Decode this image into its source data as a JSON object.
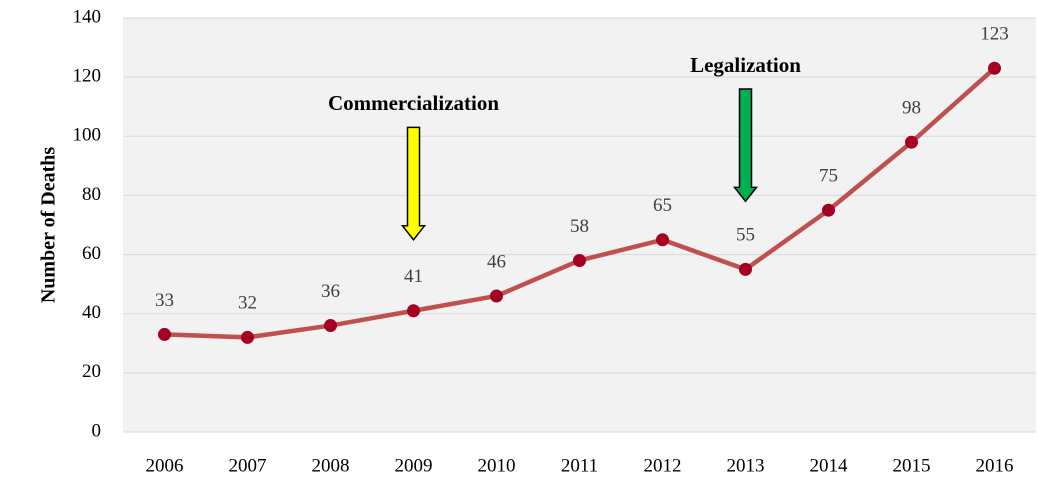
{
  "chart_data": {
    "type": "line",
    "title": "",
    "xlabel": "",
    "ylabel": "Number of Deaths",
    "categories": [
      "2006",
      "2007",
      "2008",
      "2009",
      "2010",
      "2011",
      "2012",
      "2013",
      "2014",
      "2015",
      "2016"
    ],
    "series": [
      {
        "values": [
          33,
          32,
          36,
          41,
          46,
          58,
          65,
          55,
          75,
          98,
          123
        ],
        "color": "#c0504d",
        "marker_color": "#a50021",
        "data_labels": [
          "33",
          "32",
          "36",
          "41",
          "46",
          "58",
          "65",
          "55",
          "75",
          "98",
          "123"
        ]
      }
    ],
    "ylim": [
      0,
      140
    ],
    "yticks": [
      "0",
      "20",
      "40",
      "60",
      "80",
      "100",
      "120",
      "140"
    ],
    "grid": true,
    "plot_background": "#f2f2f2",
    "annotations": [
      {
        "text": "Commercialization",
        "category": "2009",
        "arrow_color": "#ffff00",
        "arrow_from": 103,
        "arrow_to": 65
      },
      {
        "text": "Legalization",
        "category": "2013",
        "arrow_color": "#00b050",
        "arrow_from": 116,
        "arrow_to": 78
      }
    ]
  }
}
